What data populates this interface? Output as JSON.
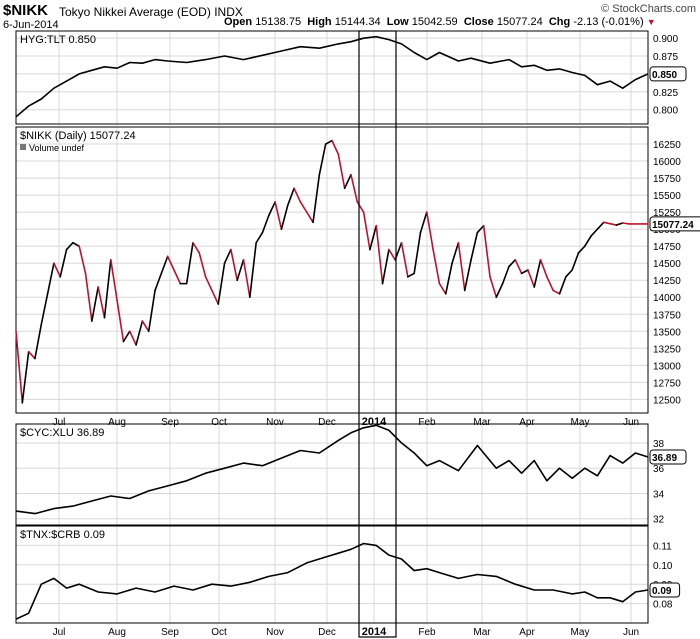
{
  "header": {
    "symbol": "$NIKK",
    "name": "Tokyo Nikkei Average (EOD)",
    "exchange": "INDX",
    "date": "6-Jun-2014",
    "open_label": "Open",
    "open": "15138.75",
    "high_label": "High",
    "high": "15144.34",
    "low_label": "Low",
    "low": "15042.59",
    "close_label": "Close",
    "close": "15077.24",
    "chg_label": "Chg",
    "chg": "-2.13 (-0.01%)",
    "brand": "© StockCharts.com"
  },
  "x_labels": [
    "Jul",
    "Aug",
    "Sep",
    "Oct",
    "Nov",
    "Dec",
    "2014",
    "Feb",
    "Mar",
    "Apr",
    "May",
    "Jun"
  ],
  "colors": {
    "line": "#000000",
    "down": "#c0102a",
    "grid": "#d8d8d8",
    "box": "#000000",
    "badge_bg": "#ffffff"
  },
  "chart_data": [
    {
      "type": "line",
      "title": "HYG:TLT 0.850",
      "last": "0.850",
      "ylim": [
        0.78,
        0.91
      ],
      "yticks": [
        "0.900",
        "0.875",
        "0.850",
        "0.825",
        "0.800"
      ],
      "ytick_values": [
        0.9,
        0.875,
        0.85,
        0.825,
        0.8
      ],
      "x": [
        0,
        0.02,
        0.04,
        0.06,
        0.08,
        0.1,
        0.12,
        0.14,
        0.16,
        0.18,
        0.2,
        0.22,
        0.24,
        0.27,
        0.3,
        0.33,
        0.36,
        0.39,
        0.42,
        0.45,
        0.48,
        0.51,
        0.53,
        0.55,
        0.57,
        0.59,
        0.61,
        0.63,
        0.65,
        0.67,
        0.7,
        0.72,
        0.75,
        0.78,
        0.8,
        0.82,
        0.84,
        0.86,
        0.88,
        0.9,
        0.92,
        0.94,
        0.96,
        0.98,
        1.0
      ],
      "values": [
        0.79,
        0.805,
        0.815,
        0.83,
        0.84,
        0.85,
        0.855,
        0.86,
        0.858,
        0.866,
        0.865,
        0.87,
        0.868,
        0.866,
        0.87,
        0.875,
        0.87,
        0.876,
        0.882,
        0.888,
        0.886,
        0.892,
        0.895,
        0.9,
        0.902,
        0.898,
        0.892,
        0.88,
        0.87,
        0.88,
        0.868,
        0.872,
        0.865,
        0.87,
        0.86,
        0.862,
        0.855,
        0.857,
        0.852,
        0.848,
        0.835,
        0.84,
        0.83,
        0.842,
        0.85
      ]
    },
    {
      "type": "line",
      "title": "$NIKK (Daily) 15077.24",
      "subtitle": "Volume undef",
      "last": "15077.24",
      "ylim": [
        12300,
        16500
      ],
      "yticks": [
        "16250",
        "16000",
        "15750",
        "15500",
        "15250",
        "15000",
        "14750",
        "14500",
        "14250",
        "14000",
        "13750",
        "13500",
        "13250",
        "13000",
        "12750",
        "12500"
      ],
      "ytick_values": [
        16250,
        16000,
        15750,
        15500,
        15250,
        15000,
        14750,
        14500,
        14250,
        14000,
        13750,
        13500,
        13250,
        13000,
        12750,
        12500
      ],
      "x": [
        0,
        0.01,
        0.02,
        0.03,
        0.04,
        0.05,
        0.06,
        0.07,
        0.08,
        0.09,
        0.1,
        0.11,
        0.12,
        0.13,
        0.14,
        0.15,
        0.16,
        0.17,
        0.18,
        0.19,
        0.2,
        0.21,
        0.22,
        0.23,
        0.24,
        0.25,
        0.26,
        0.27,
        0.28,
        0.29,
        0.3,
        0.31,
        0.32,
        0.33,
        0.34,
        0.35,
        0.36,
        0.37,
        0.38,
        0.39,
        0.4,
        0.41,
        0.42,
        0.43,
        0.44,
        0.45,
        0.46,
        0.47,
        0.48,
        0.49,
        0.5,
        0.51,
        0.52,
        0.53,
        0.54,
        0.55,
        0.56,
        0.57,
        0.58,
        0.59,
        0.6,
        0.61,
        0.62,
        0.63,
        0.64,
        0.65,
        0.66,
        0.67,
        0.68,
        0.69,
        0.7,
        0.71,
        0.72,
        0.73,
        0.74,
        0.75,
        0.76,
        0.77,
        0.78,
        0.79,
        0.8,
        0.81,
        0.82,
        0.83,
        0.84,
        0.85,
        0.86,
        0.87,
        0.88,
        0.89,
        0.9,
        0.91,
        0.92,
        0.93,
        0.94,
        0.95,
        0.96,
        0.97,
        1.0
      ],
      "values": [
        13500,
        12450,
        13200,
        13100,
        13600,
        14050,
        14500,
        14300,
        14700,
        14800,
        14750,
        14350,
        13650,
        14150,
        13700,
        14550,
        13950,
        13350,
        13500,
        13300,
        13650,
        13500,
        14100,
        14350,
        14600,
        14400,
        14200,
        14200,
        14800,
        14650,
        14300,
        14100,
        13900,
        14500,
        14700,
        14250,
        14550,
        14000,
        14800,
        14950,
        15200,
        15400,
        15000,
        15350,
        15600,
        15400,
        15250,
        15100,
        15800,
        16250,
        16300,
        16100,
        15600,
        15800,
        15400,
        15250,
        14700,
        15050,
        14200,
        14700,
        14550,
        14800,
        14300,
        14350,
        14950,
        15250,
        14700,
        14200,
        14050,
        14500,
        14800,
        14100,
        14550,
        14950,
        15050,
        14300,
        14000,
        14200,
        14450,
        14550,
        14350,
        14400,
        14150,
        14550,
        14300,
        14100,
        14050,
        14300,
        14400,
        14650,
        14750,
        14900,
        15000,
        15100,
        15080,
        15060,
        15090,
        15077,
        15077
      ],
      "down": [
        0,
        1,
        0,
        1,
        0,
        0,
        0,
        1,
        0,
        0,
        0,
        1,
        1,
        0,
        1,
        0,
        1,
        1,
        0,
        1,
        0,
        1,
        0,
        0,
        0,
        1,
        1,
        0,
        0,
        1,
        1,
        1,
        1,
        0,
        0,
        1,
        0,
        1,
        0,
        0,
        0,
        0,
        1,
        0,
        0,
        1,
        1,
        1,
        0,
        0,
        0,
        1,
        1,
        0,
        1,
        1,
        1,
        0,
        1,
        0,
        1,
        0,
        1,
        0,
        0,
        0,
        1,
        1,
        1,
        0,
        0,
        1,
        0,
        0,
        0,
        1,
        1,
        0,
        0,
        0,
        1,
        0,
        1,
        0,
        1,
        1,
        1,
        0,
        0,
        0,
        0,
        0,
        0,
        0,
        1,
        1,
        0,
        1,
        1
      ]
    },
    {
      "type": "line",
      "title": "$CYC:XLU 36.89",
      "last": "36.89",
      "ylim": [
        31.5,
        39.5
      ],
      "yticks": [
        "38",
        "36",
        "34",
        "32"
      ],
      "ytick_values": [
        38,
        36,
        34,
        32
      ],
      "x": [
        0,
        0.03,
        0.06,
        0.09,
        0.12,
        0.15,
        0.18,
        0.21,
        0.24,
        0.27,
        0.3,
        0.33,
        0.36,
        0.39,
        0.42,
        0.45,
        0.48,
        0.51,
        0.53,
        0.55,
        0.57,
        0.59,
        0.61,
        0.63,
        0.65,
        0.67,
        0.7,
        0.73,
        0.76,
        0.78,
        0.8,
        0.82,
        0.84,
        0.86,
        0.88,
        0.9,
        0.92,
        0.94,
        0.96,
        0.98,
        1.0
      ],
      "values": [
        32.6,
        32.4,
        32.8,
        33.0,
        33.4,
        33.8,
        33.6,
        34.2,
        34.6,
        35.0,
        35.6,
        36.0,
        36.4,
        36.2,
        36.8,
        37.4,
        37.2,
        38.2,
        38.8,
        39.2,
        39.4,
        39.0,
        38.0,
        37.2,
        36.2,
        36.6,
        35.8,
        37.8,
        36.0,
        36.6,
        35.6,
        36.6,
        35.0,
        36.0,
        35.2,
        36.0,
        35.4,
        37.0,
        36.4,
        37.2,
        36.89
      ]
    },
    {
      "type": "line",
      "title": "$TNX:$CRB 0.09",
      "last": "0.09",
      "ylim": [
        0.07,
        0.12
      ],
      "yticks": [
        "0.11",
        "0.10",
        "0.09",
        "0.08"
      ],
      "ytick_values": [
        0.11,
        0.1,
        0.09,
        0.08
      ],
      "x": [
        0,
        0.02,
        0.04,
        0.06,
        0.08,
        0.1,
        0.13,
        0.16,
        0.19,
        0.22,
        0.25,
        0.28,
        0.31,
        0.34,
        0.37,
        0.4,
        0.43,
        0.46,
        0.49,
        0.51,
        0.53,
        0.55,
        0.57,
        0.59,
        0.61,
        0.63,
        0.65,
        0.67,
        0.7,
        0.73,
        0.76,
        0.79,
        0.82,
        0.85,
        0.88,
        0.9,
        0.92,
        0.94,
        0.96,
        0.98,
        1.0
      ],
      "values": [
        0.072,
        0.075,
        0.09,
        0.093,
        0.088,
        0.09,
        0.086,
        0.085,
        0.088,
        0.086,
        0.089,
        0.087,
        0.09,
        0.089,
        0.091,
        0.094,
        0.096,
        0.101,
        0.104,
        0.106,
        0.108,
        0.111,
        0.11,
        0.105,
        0.103,
        0.097,
        0.098,
        0.096,
        0.093,
        0.095,
        0.094,
        0.09,
        0.087,
        0.087,
        0.085,
        0.086,
        0.083,
        0.083,
        0.081,
        0.086,
        0.087
      ]
    }
  ]
}
